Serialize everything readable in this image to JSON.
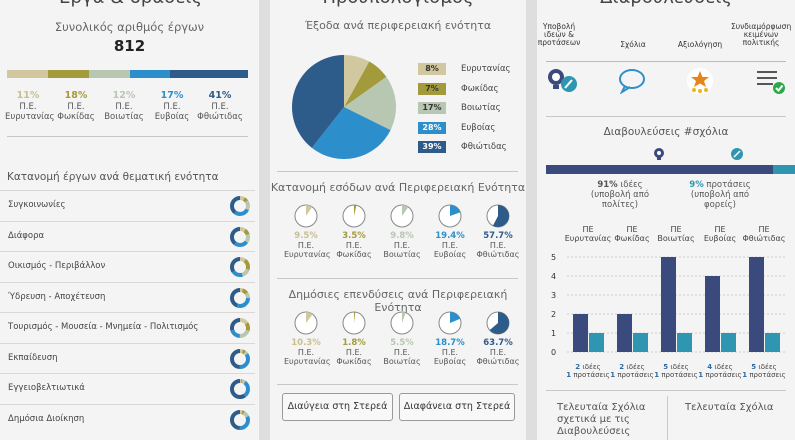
{
  "colors": {
    "c1": "#d2c8a0",
    "c2": "#a39a3c",
    "c3": "#b8c7b2",
    "c4": "#2c8fcb",
    "c5": "#2e5c8a",
    "dark": "#3b4a7c",
    "teal": "#2e96b0"
  },
  "panel1": {
    "title": "Έργα & δράσεις",
    "subtitle": "Συνολικός αριθμός έργων",
    "total": "812",
    "shares": [
      {
        "pct": "11%",
        "l1": "Π.Ε.",
        "l2": "Ευρυτανίας",
        "value": 11
      },
      {
        "pct": "18%",
        "l1": "Π.Ε.",
        "l2": "Φωκίδας",
        "value": 18
      },
      {
        "pct": "12%",
        "l1": "Π.Ε.",
        "l2": "Βοιωτίας",
        "value": 12
      },
      {
        "pct": "17%",
        "l1": "Π.Ε.",
        "l2": "Ευβοίας",
        "value": 17
      },
      {
        "pct": "41%",
        "l1": "Π.Ε.",
        "l2": "Φθιώτιδας",
        "value": 41
      }
    ],
    "cat_title": "Κατανομή έργων ανά θεματική ενότητα",
    "categories": [
      "Συγκοινωνίες",
      "Διάφορα",
      "Οικισμός - Περιβάλλον",
      "Ύδρευση - Αποχέτευση",
      "Τουρισμός - Μουσεία - Μνημεία - Πολιτισμός",
      "Εκπαίδευση",
      "Εγγειοβελτιωτικά",
      "Δημόσια Διοίκηση"
    ]
  },
  "panel2": {
    "title": "Προϋπολογισμός",
    "expenses_title": "Έξοδα ανά περιφερειακή ενότητα",
    "legend": [
      {
        "pct": "8%",
        "name": "Ευρυτανίας",
        "value": 8
      },
      {
        "pct": "7%",
        "name": "Φωκίδας",
        "value": 7
      },
      {
        "pct": "17%",
        "name": "Βοιωτίας",
        "value": 17
      },
      {
        "pct": "28%",
        "name": "Ευβοίας",
        "value": 28
      },
      {
        "pct": "39%",
        "name": "Φθιώτιδας",
        "value": 39
      }
    ],
    "income_title": "Κατανομή εσόδων ανά Περιφερειακή Ενότητα",
    "income": [
      {
        "pct": "9.5%",
        "l1": "Π.Ε.",
        "l2": "Ευρυτανίας",
        "value": 9.5
      },
      {
        "pct": "3.5%",
        "l1": "Π.Ε.",
        "l2": "Φωκίδας",
        "value": 3.5
      },
      {
        "pct": "9.8%",
        "l1": "Π.Ε.",
        "l2": "Βοιωτίας",
        "value": 9.8
      },
      {
        "pct": "19.4%",
        "l1": "Π.Ε.",
        "l2": "Ευβοίας",
        "value": 19.4
      },
      {
        "pct": "57.7%",
        "l1": "Π.Ε.",
        "l2": "Φθιώτιδας",
        "value": 57.7
      }
    ],
    "invest_title": "Δημόσιες επενδύσεις ανά Περιφερειακή Ενότητα",
    "invest": [
      {
        "pct": "10.3%",
        "l1": "Π.Ε.",
        "l2": "Ευρυτανίας",
        "value": 10.3
      },
      {
        "pct": "1.8%",
        "l1": "Π.Ε.",
        "l2": "Φωκίδας",
        "value": 1.8
      },
      {
        "pct": "5.5%",
        "l1": "Π.Ε.",
        "l2": "Βοιωτίας",
        "value": 5.5
      },
      {
        "pct": "18.7%",
        "l1": "Π.Ε.",
        "l2": "Ευβοίας",
        "value": 18.7
      },
      {
        "pct": "63.7%",
        "l1": "Π.Ε.",
        "l2": "Φθιώτιδας",
        "value": 63.7
      }
    ],
    "btn1": "Διαύγεια στη Στερεά",
    "btn2": "Διαφάνεια στη Στερεά"
  },
  "panel3": {
    "title": "Διαβουλεύσεις",
    "steps": [
      {
        "l1": "Υποβολή",
        "l2": "ιδεών &",
        "l3": "προτάσεων",
        "icon": "idea-icon"
      },
      {
        "l1": "Σχόλια",
        "l2": "",
        "l3": "",
        "icon": "comment-icon"
      },
      {
        "l1": "Αξιολόγηση",
        "l2": "",
        "l3": "",
        "icon": "star-rating-icon"
      },
      {
        "l1": "Συνδιαμόρφωση",
        "l2": "κειμένων",
        "l3": "πολιτικής",
        "icon": "checklist-icon"
      }
    ],
    "comments_title": "Διαβουλεύσεις #σχόλια",
    "ideas_pct": "91%",
    "ideas_label": "ιδέες",
    "ideas_sub": "(υποβολή από πολίτες)",
    "ideas_value": 91,
    "props_pct": "9%",
    "props_label": "προτάσεις",
    "props_sub": "(υποβολή από φορείς)",
    "props_value": 9,
    "latest1_l1": "Τελευταία Σχόλια",
    "latest1_l2": "σχετικά με τις",
    "latest1_l3": "Διαβουλεύσεις",
    "latest2": "Τελευταία Σχόλια",
    "bottom_ideas": "ιδέες",
    "bottom_props": "προτάσεις"
  },
  "chart_data": {
    "type": "bar",
    "categories": [
      "ΠΕ Ευρυτανίας",
      "ΠΕ Φωκίδας",
      "ΠΕ Βοιωτίας",
      "ΠΕ Ευβοίας",
      "ΠΕ Φθιώτιδας"
    ],
    "cat_l1": [
      "ΠΕ",
      "ΠΕ",
      "ΠΕ",
      "ΠΕ",
      "ΠΕ"
    ],
    "cat_l2": [
      "Ευρυτανίας",
      "Φωκίδας",
      "Βοιωτίας",
      "Ευβοίας",
      "Φθιώτιδας"
    ],
    "series": [
      {
        "name": "ιδέες",
        "values": [
          2,
          2,
          5,
          4,
          5
        ]
      },
      {
        "name": "προτάσεις",
        "values": [
          1,
          1,
          1,
          1,
          1
        ]
      }
    ],
    "ylim": [
      0,
      5
    ],
    "yticks": [
      "0",
      "1",
      "2",
      "3",
      "4",
      "5"
    ]
  }
}
